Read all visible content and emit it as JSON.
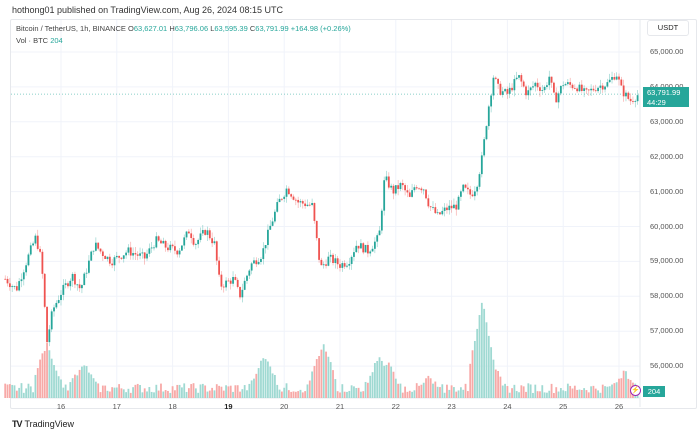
{
  "publisher_line": "hothong01 published on TradingView.com, Aug 26, 2024 08:15 UTC",
  "legend": {
    "symbol": "Bitcoin / TetherUS, 1h, BINANCE",
    "o_label": "O",
    "o_value": "63,627.01",
    "h_label": "H",
    "h_value": "63,796.06",
    "l_label": "L",
    "l_value": "63,595.39",
    "c_label": "C",
    "c_value": "63,791.99",
    "change": "+164.98 (+0.26%)",
    "vol_label": "Vol · BTC",
    "vol_value": "204"
  },
  "currency_button": "USDT",
  "last_price_tag": {
    "price": "63,791.99",
    "countdown": "44:29"
  },
  "volume_tag": "204",
  "brand": "TradingView",
  "colors": {
    "up": "#26a69a",
    "down": "#ef5350",
    "up_vol": "#9fd9d2",
    "down_vol": "#f7a9a7",
    "grid": "#f0f3fa",
    "alert": "#9c27b0"
  },
  "chart_data": {
    "type": "candlestick",
    "title": "Bitcoin / TetherUS, 1h, BINANCE",
    "xlabel": "",
    "ylabel": "USDT",
    "ylim": [
      55500,
      65500
    ],
    "y_ticks": [
      "65,000.00",
      "64,000.00",
      "63,000.00",
      "62,000.00",
      "61,000.00",
      "60,000.00",
      "59,000.00",
      "58,000.00",
      "57,000.00",
      "56,000.00"
    ],
    "x_ticks": [
      "16",
      "17",
      "18",
      "19",
      "20",
      "21",
      "22",
      "23",
      "24",
      "25",
      "26"
    ],
    "bold_x_tick": "19",
    "grid": true,
    "last_price": 63791.99,
    "path_waypoints": [
      {
        "day": 15.0,
        "price": 58500
      },
      {
        "day": 15.2,
        "price": 58200
      },
      {
        "day": 15.45,
        "price": 59300
      },
      {
        "day": 15.55,
        "price": 59700
      },
      {
        "day": 15.65,
        "price": 59000
      },
      {
        "day": 15.75,
        "price": 56700
      },
      {
        "day": 15.85,
        "price": 57600
      },
      {
        "day": 16.0,
        "price": 58100
      },
      {
        "day": 16.2,
        "price": 58600
      },
      {
        "day": 16.35,
        "price": 58200
      },
      {
        "day": 16.6,
        "price": 59500
      },
      {
        "day": 16.7,
        "price": 59300
      },
      {
        "day": 16.9,
        "price": 59000
      },
      {
        "day": 17.2,
        "price": 59300
      },
      {
        "day": 17.5,
        "price": 59100
      },
      {
        "day": 17.7,
        "price": 59600
      },
      {
        "day": 17.9,
        "price": 59400
      },
      {
        "day": 18.1,
        "price": 59300
      },
      {
        "day": 18.3,
        "price": 59900
      },
      {
        "day": 18.4,
        "price": 59500
      },
      {
        "day": 18.6,
        "price": 59900
      },
      {
        "day": 18.75,
        "price": 59500
      },
      {
        "day": 18.85,
        "price": 58300
      },
      {
        "day": 19.1,
        "price": 58500
      },
      {
        "day": 19.2,
        "price": 58000
      },
      {
        "day": 19.4,
        "price": 58900
      },
      {
        "day": 19.6,
        "price": 59200
      },
      {
        "day": 19.75,
        "price": 60000
      },
      {
        "day": 19.9,
        "price": 60700
      },
      {
        "day": 20.05,
        "price": 61100
      },
      {
        "day": 20.25,
        "price": 60700
      },
      {
        "day": 20.5,
        "price": 60600
      },
      {
        "day": 20.65,
        "price": 58800
      },
      {
        "day": 20.8,
        "price": 59100
      },
      {
        "day": 21.0,
        "price": 58900
      },
      {
        "day": 21.15,
        "price": 59000
      },
      {
        "day": 21.3,
        "price": 59500
      },
      {
        "day": 21.5,
        "price": 59300
      },
      {
        "day": 21.7,
        "price": 59700
      },
      {
        "day": 21.8,
        "price": 61400
      },
      {
        "day": 21.95,
        "price": 61000
      },
      {
        "day": 22.1,
        "price": 61200
      },
      {
        "day": 22.25,
        "price": 60800
      },
      {
        "day": 22.35,
        "price": 61200
      },
      {
        "day": 22.5,
        "price": 61100
      },
      {
        "day": 22.6,
        "price": 60600
      },
      {
        "day": 22.75,
        "price": 60300
      },
      {
        "day": 22.9,
        "price": 60500
      },
      {
        "day": 23.1,
        "price": 60600
      },
      {
        "day": 23.2,
        "price": 61100
      },
      {
        "day": 23.35,
        "price": 60900
      },
      {
        "day": 23.45,
        "price": 61200
      },
      {
        "day": 23.55,
        "price": 62000
      },
      {
        "day": 23.65,
        "price": 63300
      },
      {
        "day": 23.75,
        "price": 64300
      },
      {
        "day": 23.85,
        "price": 63900
      },
      {
        "day": 24.0,
        "price": 63800
      },
      {
        "day": 24.2,
        "price": 64300
      },
      {
        "day": 24.35,
        "price": 63800
      },
      {
        "day": 24.5,
        "price": 64100
      },
      {
        "day": 24.65,
        "price": 63900
      },
      {
        "day": 24.75,
        "price": 64300
      },
      {
        "day": 24.85,
        "price": 63600
      },
      {
        "day": 25.0,
        "price": 64100
      },
      {
        "day": 25.25,
        "price": 64000
      },
      {
        "day": 25.4,
        "price": 63800
      },
      {
        "day": 25.6,
        "price": 64000
      },
      {
        "day": 25.8,
        "price": 64100
      },
      {
        "day": 25.95,
        "price": 64400
      },
      {
        "day": 26.05,
        "price": 63900
      },
      {
        "day": 26.2,
        "price": 63600
      },
      {
        "day": 26.35,
        "price": 63790
      }
    ],
    "volume_spikes": [
      {
        "day": 15.75,
        "height": 0.55,
        "up": false
      },
      {
        "day": 16.4,
        "height": 0.35,
        "up": true
      },
      {
        "day": 19.65,
        "height": 0.42,
        "up": true
      },
      {
        "day": 20.7,
        "height": 0.55,
        "up": false
      },
      {
        "day": 21.7,
        "height": 0.4,
        "up": false
      },
      {
        "day": 21.85,
        "height": 0.35,
        "up": true
      },
      {
        "day": 22.6,
        "height": 0.18,
        "up": false
      },
      {
        "day": 23.55,
        "height": 1.0,
        "up": false
      },
      {
        "day": 23.65,
        "height": 0.5,
        "up": true
      },
      {
        "day": 26.1,
        "height": 0.25,
        "up": false
      }
    ]
  },
  "icons": {
    "alert": "lightning-icon",
    "brand": "tradingview-logo-icon"
  }
}
